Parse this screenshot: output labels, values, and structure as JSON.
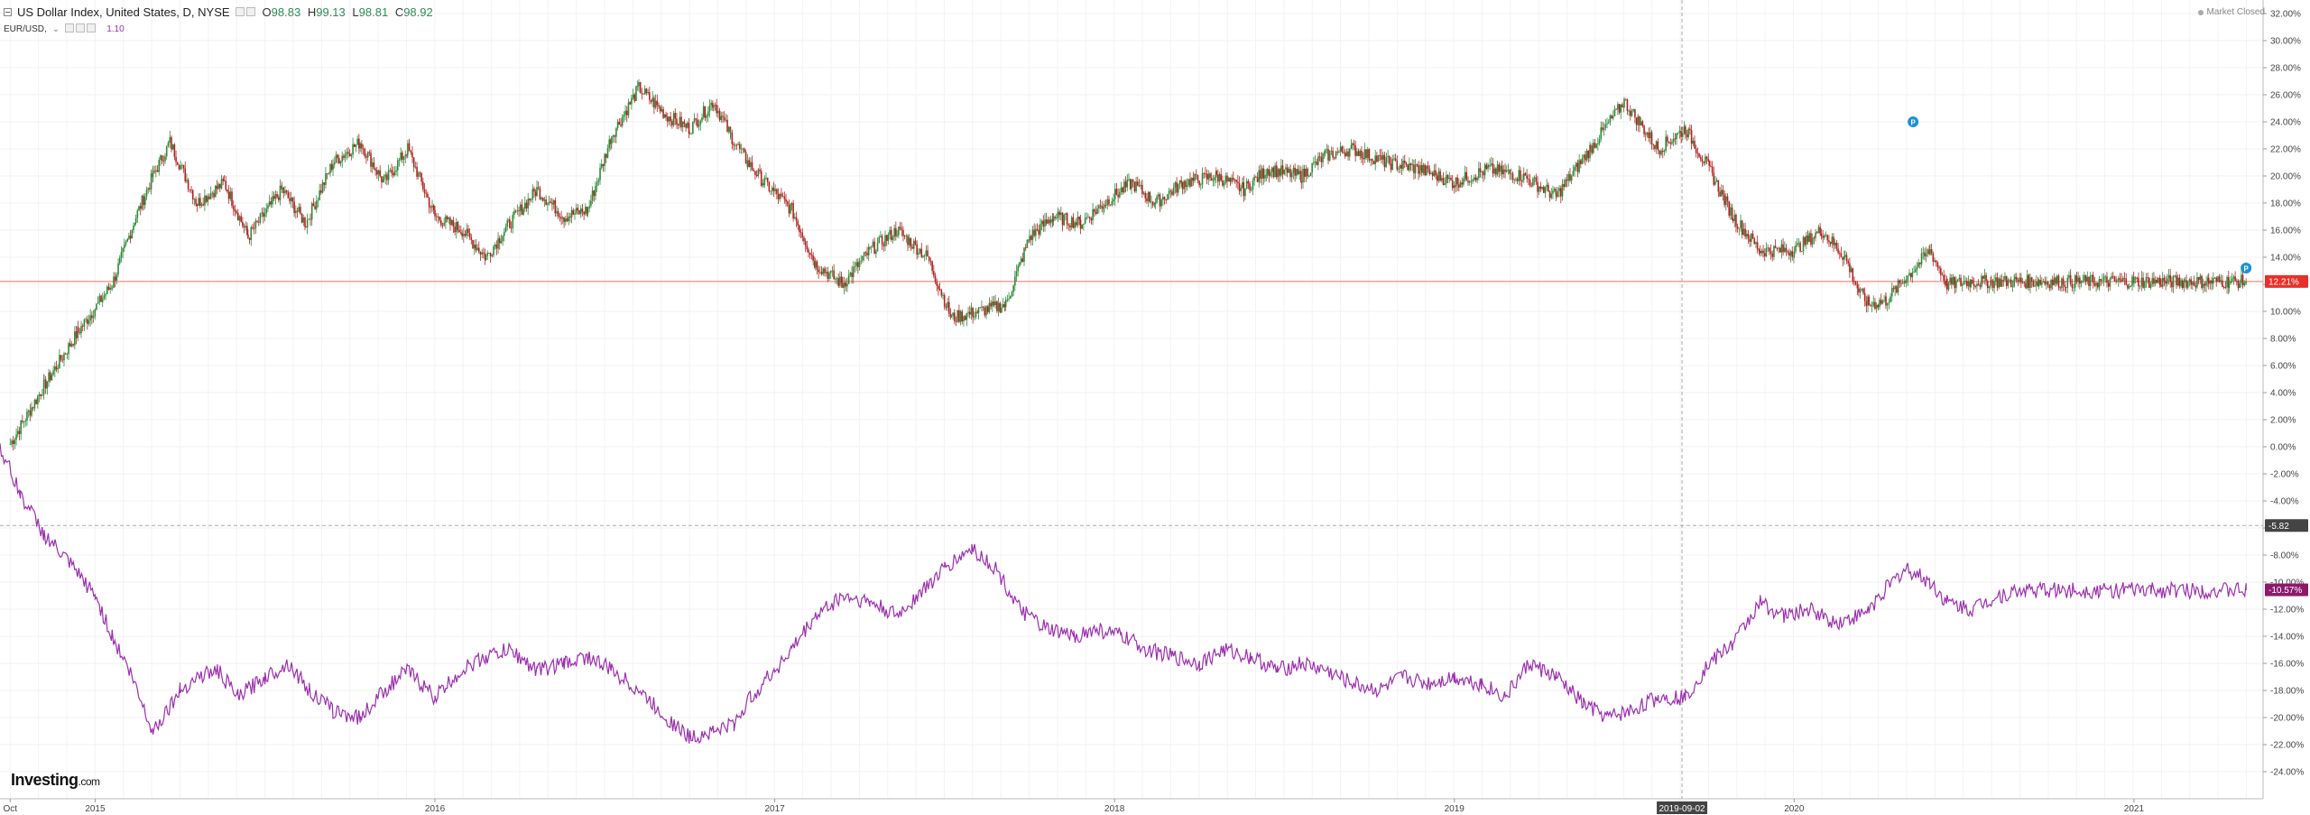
{
  "header": {
    "symbol_title": "US Dollar Index, United States, D, NYSE",
    "ohlc": [
      {
        "key": "O",
        "value": "98.83"
      },
      {
        "key": "H",
        "value": "99.13"
      },
      {
        "key": "L",
        "value": "98.81"
      },
      {
        "key": "C",
        "value": "98.92"
      }
    ],
    "compare_symbol": "EUR/USD,",
    "compare_value": "1.10"
  },
  "market_status": "Market Closed",
  "branding": {
    "name": "Investing",
    "suffix": ".com"
  },
  "colors": {
    "up": "#2e8b3a",
    "down": "#b22222",
    "compare_line": "#9b2fae",
    "current_value_line": "#f28b82",
    "current_value_label": "#e8302a",
    "compare_label": "#8b1a6b",
    "crosshair_label": "#444444"
  },
  "chart_data": {
    "type": "line",
    "title": "",
    "xlabel": "",
    "ylabel": "",
    "x_unit": "year",
    "xlim": [
      2014.72,
      2021.38
    ],
    "ylim": [
      -26.0,
      33.0
    ],
    "y_ticks": [
      32,
      30,
      28,
      26,
      24,
      22,
      20,
      18,
      16,
      14,
      12,
      10,
      8,
      6,
      4,
      2,
      0,
      -2,
      -4,
      -6,
      -8,
      -10,
      -12,
      -14,
      -16,
      -18,
      -20,
      -22,
      -24
    ],
    "y_tick_labels": [
      "32.00%",
      "30.00%",
      "28.00%",
      "26.00%",
      "24.00%",
      "22.00%",
      "20.00%",
      "18.00%",
      "16.00%",
      "14.00%",
      "12.00%",
      "10.00%",
      "8.00%",
      "6.00%",
      "4.00%",
      "2.00%",
      "0.00%",
      "-2.00%",
      "-4.00%",
      "-6.00%",
      "-8.00%",
      "-10.00%",
      "-12.00%",
      "-14.00%",
      "-16.00%",
      "-18.00%",
      "-20.00%",
      "-22.00%",
      "-24.00%"
    ],
    "x_ticks": [
      2014.75,
      2015.0,
      2016.0,
      2017.0,
      2018.0,
      2019.0,
      2020.0,
      2021.0
    ],
    "x_tick_labels": [
      "Oct",
      "2015",
      "2016",
      "2017",
      "2018",
      "2019",
      "2020",
      "2021"
    ],
    "grid": true,
    "series": [
      {
        "style": "candlestick",
        "values_are": "percent change",
        "x": [
          2014.75,
          2014.85,
          2014.95,
          2015.05,
          2015.12,
          2015.17,
          2015.22,
          2015.3,
          2015.38,
          2015.45,
          2015.55,
          2015.62,
          2015.7,
          2015.78,
          2015.85,
          2015.92,
          2016.0,
          2016.08,
          2016.15,
          2016.22,
          2016.3,
          2016.38,
          2016.45,
          2016.52,
          2016.6,
          2016.68,
          2016.75,
          2016.82,
          2016.87,
          2016.92,
          2016.97,
          2017.05,
          2017.12,
          2017.2,
          2017.28,
          2017.36,
          2017.45,
          2017.52,
          2017.6,
          2017.68,
          2017.75,
          2017.82,
          2017.9,
          2017.97,
          2018.05,
          2018.12,
          2018.2,
          2018.3,
          2018.38,
          2018.45,
          2018.55,
          2018.62,
          2018.7,
          2018.8,
          2018.9,
          2019.0,
          2019.1,
          2019.2,
          2019.3,
          2019.4,
          2019.5,
          2019.6,
          2019.68,
          2019.75,
          2019.82,
          2019.9,
          2020.0,
          2020.08,
          2020.15,
          2020.19,
          2020.22,
          2020.27,
          2020.33,
          2020.4,
          2020.45,
          2020.52,
          2020.58,
          2020.65,
          2020.72,
          2020.8,
          2020.88,
          2020.95,
          2021.0,
          2021.08,
          2021.15,
          2021.22,
          2021.28,
          2021.33
        ],
        "values": [
          0.2,
          4.5,
          8.5,
          12.0,
          17.0,
          20.0,
          22.5,
          18.0,
          19.5,
          15.5,
          19.0,
          16.5,
          21.0,
          22.5,
          19.5,
          22.0,
          17.0,
          16.0,
          14.0,
          16.5,
          19.0,
          17.0,
          17.5,
          23.0,
          26.5,
          24.5,
          23.5,
          25.5,
          23.0,
          21.0,
          19.5,
          17.5,
          13.5,
          12.0,
          14.5,
          16.0,
          14.0,
          9.5,
          10.0,
          10.5,
          15.5,
          17.0,
          16.5,
          18.0,
          19.5,
          18.0,
          19.5,
          20.0,
          19.0,
          20.5,
          20.0,
          21.5,
          22.0,
          21.0,
          20.5,
          19.5,
          20.5,
          20.0,
          18.5,
          22.0,
          25.5,
          22.0,
          23.5,
          20.5,
          17.0,
          14.5,
          14.5,
          16.0,
          14.0,
          11.5,
          10.5,
          10.8,
          12.5,
          14.5,
          12.0,
          12.2,
          12.2,
          12.2,
          12.2,
          12.2,
          12.2,
          12.2,
          12.2,
          12.2,
          12.2,
          12.2,
          12.2,
          12.2
        ]
      },
      {
        "name": "EUR/USD",
        "style": "line",
        "values_are": "percent change",
        "x": [
          2014.72,
          2014.78,
          2014.85,
          2014.92,
          2015.0,
          2015.05,
          2015.1,
          2015.17,
          2015.25,
          2015.3,
          2015.36,
          2015.42,
          2015.5,
          2015.57,
          2015.63,
          2015.7,
          2015.78,
          2015.85,
          2015.92,
          2016.0,
          2016.08,
          2016.15,
          2016.22,
          2016.3,
          2016.38,
          2016.45,
          2016.52,
          2016.6,
          2016.68,
          2016.75,
          2016.82,
          2016.88,
          2016.93,
          2017.0,
          2017.05,
          2017.12,
          2017.2,
          2017.28,
          2017.36,
          2017.42,
          2017.5,
          2017.58,
          2017.65,
          2017.72,
          2017.8,
          2017.88,
          2017.95,
          2018.02,
          2018.1,
          2018.17,
          2018.25,
          2018.32,
          2018.4,
          2018.48,
          2018.55,
          2018.62,
          2018.7,
          2018.78,
          2018.85,
          2018.92,
          2019.0,
          2019.08,
          2019.15,
          2019.22,
          2019.3,
          2019.38,
          2019.45,
          2019.52,
          2019.6,
          2019.68,
          2019.75,
          2019.82,
          2019.9,
          2019.97,
          2020.05,
          2020.12,
          2020.19,
          2020.22,
          2020.27,
          2020.33,
          2020.4,
          2020.45,
          2020.52,
          2020.6,
          2020.68,
          2020.75,
          2020.82,
          2020.9,
          2020.97,
          2021.05,
          2021.12,
          2021.2,
          2021.27,
          2021.33
        ],
        "values": [
          0.0,
          -3.5,
          -6.5,
          -8.5,
          -11.0,
          -14.0,
          -16.5,
          -21.0,
          -18.0,
          -17.0,
          -16.5,
          -18.5,
          -17.0,
          -16.0,
          -18.0,
          -19.5,
          -20.0,
          -18.0,
          -16.5,
          -18.5,
          -16.5,
          -15.5,
          -15.0,
          -16.5,
          -16.0,
          -15.5,
          -16.5,
          -18.0,
          -20.0,
          -21.5,
          -21.0,
          -20.5,
          -18.5,
          -16.5,
          -15.0,
          -12.5,
          -11.0,
          -11.5,
          -12.5,
          -11.0,
          -9.0,
          -7.5,
          -9.0,
          -12.0,
          -13.5,
          -14.0,
          -13.5,
          -14.0,
          -15.0,
          -15.5,
          -16.0,
          -15.0,
          -15.5,
          -16.5,
          -16.0,
          -16.5,
          -17.5,
          -18.0,
          -17.0,
          -17.5,
          -17.0,
          -17.5,
          -18.5,
          -16.0,
          -17.0,
          -19.0,
          -20.0,
          -19.5,
          -18.5,
          -18.5,
          -16.0,
          -14.5,
          -11.5,
          -12.5,
          -12.0,
          -13.0,
          -12.5,
          -12.0,
          -10.5,
          -9.0,
          -10.0,
          -11.5,
          -12.0,
          -11.0,
          -10.6,
          -10.6,
          -10.6,
          -10.6,
          -10.6,
          -10.6,
          -10.6,
          -10.6,
          -10.6,
          -10.6
        ]
      }
    ],
    "annotations": {
      "current_value_label": "12.21%",
      "current_value": 12.21,
      "crosshair_y_label": "-5.82",
      "crosshair_y_value": -5.82,
      "compare_value_label": "-10.57%",
      "compare_value": -10.57,
      "crosshair_x_label": "2019-09-02",
      "crosshair_x_value": 2019.67,
      "event_markers": [
        {
          "x": 2020.35,
          "y": 24.0,
          "label": "P"
        },
        {
          "x": 2021.33,
          "y": 13.2,
          "label": "P"
        }
      ]
    }
  }
}
